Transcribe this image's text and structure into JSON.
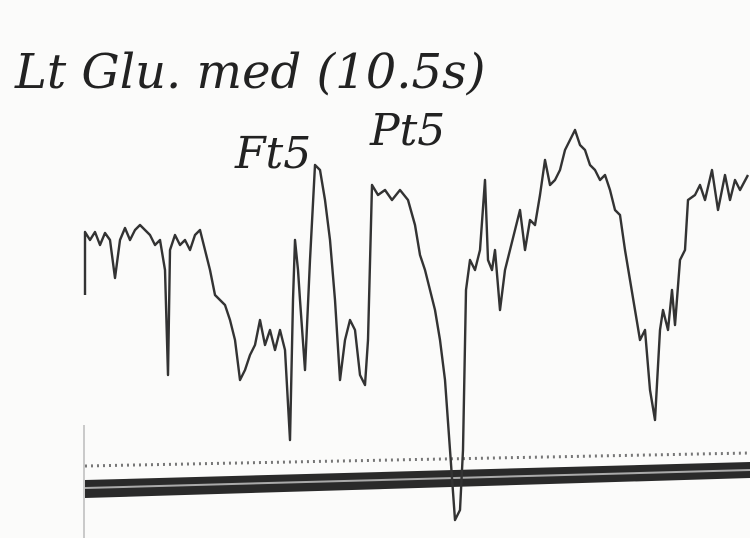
{
  "annotation": {
    "title": "Lt Glu. med (10.5s)",
    "left_label": "Ft5",
    "right_label": "Pt5"
  }
}
